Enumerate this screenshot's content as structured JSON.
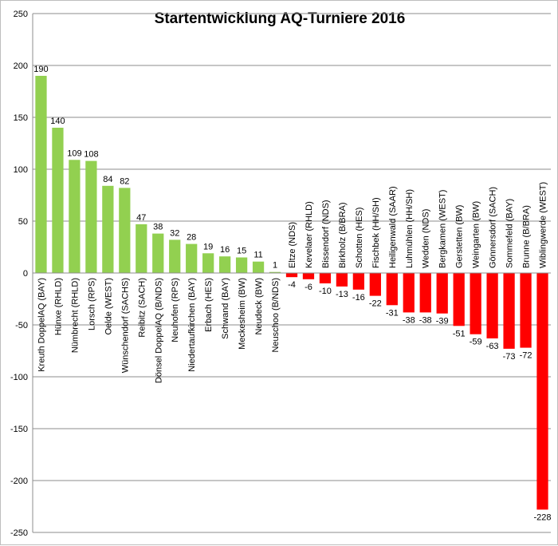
{
  "chart_data": {
    "type": "bar",
    "title": "Startentwicklung AQ-Turniere 2016",
    "xlabel": "",
    "ylabel": "",
    "ylim": [
      -250,
      250
    ],
    "yticks": [
      -250,
      -200,
      -150,
      -100,
      -50,
      0,
      50,
      100,
      150,
      200,
      250
    ],
    "grid": true,
    "legend": "none",
    "colors": {
      "positive": "#92d050",
      "negative": "#ff0000"
    },
    "categories": [
      "Kreuth DoppelAQ (BAY)",
      "Hünxe (RHLD)",
      "Nümbrecht (RHLD)",
      "Lorsch (RPS)",
      "Oelde (WEST)",
      "Wünschendorf (SACHS)",
      "Reibitz (SACH)",
      "Dönsel DoppelAQ (B/NDS)",
      "Neuhofen (RPS)",
      "Niedertaufkirchen (BAY)",
      "Erbach (HES)",
      "Schwand (BAY)",
      "Meckesheim (BW)",
      "Neudeck (BW)",
      "Neuschoo (B/NDS)",
      "Eltze (NDS)",
      "Kevelaer (RHLD)",
      "Bissendorf (NDS)",
      "Birkholz (B/BRA)",
      "Schotten (HES)",
      "Fischbek (HH/SH)",
      "Heiligenwald (SAAR)",
      "Luhmühlen (HH/SH)",
      "Wedden (NDS)",
      "Bergkamen (WEST)",
      "Gerstetten (BW)",
      "Weingarten (BW)",
      "Gönnersdorf (SACH)",
      "Sommefeld (BAY)",
      "Brunne (B/BRA)",
      "Wiblingwerde (WEST)"
    ],
    "values": [
      190,
      140,
      109,
      108,
      84,
      82,
      47,
      38,
      32,
      28,
      19,
      16,
      15,
      11,
      1,
      -4,
      -6,
      -10,
      -13,
      -16,
      -22,
      -31,
      -38,
      -38,
      -39,
      -51,
      -59,
      -63,
      -73,
      -72,
      -228
    ]
  }
}
